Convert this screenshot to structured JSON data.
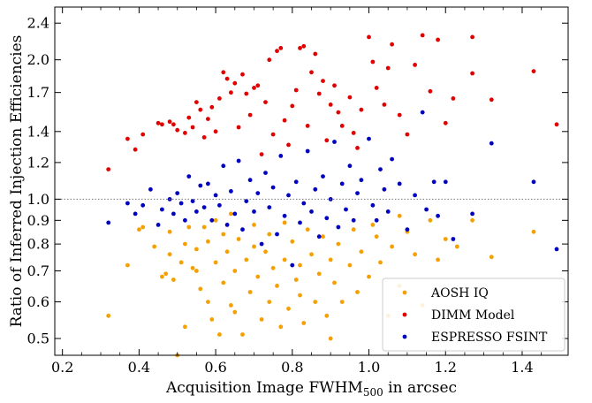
{
  "chart_data": {
    "type": "scatter",
    "xlabel_main": "Acquisition Image FWHM",
    "xlabel_sub": "500",
    "xlabel_rest": " in arcsec",
    "ylabel": "Ratio of Inferred Injection Efficiencies",
    "xlim": [
      0.18,
      1.52
    ],
    "ylim": [
      0.46,
      2.6
    ],
    "yscale": "log",
    "x_ticks": [
      0.2,
      0.4,
      0.6,
      0.8,
      1.0,
      1.2,
      1.4
    ],
    "x_tick_labels": [
      "0.2",
      "0.4",
      "0.6",
      "0.8",
      "1.0",
      "1.2",
      "1.4"
    ],
    "y_ticks": [
      0.5,
      0.6,
      0.7,
      0.8,
      0.9,
      1.0,
      1.2,
      1.4,
      1.7,
      2.0,
      2.4
    ],
    "y_tick_labels": [
      "0.5",
      "0.6",
      "0.7",
      "0.8",
      "0.9",
      "1.0",
      "1.2",
      "1.4",
      "1.7",
      "2.0",
      "2.4"
    ],
    "reference_line": {
      "y": 1.0,
      "style": "dotted",
      "color": "#777777"
    },
    "legend_position": "bottom-right",
    "series": [
      {
        "name": "AOSH IQ",
        "color": "#f5a000",
        "points": [
          [
            0.32,
            0.56
          ],
          [
            0.37,
            0.72
          ],
          [
            0.4,
            0.86
          ],
          [
            0.41,
            0.87
          ],
          [
            0.44,
            0.79
          ],
          [
            0.46,
            0.68
          ],
          [
            0.47,
            0.69
          ],
          [
            0.48,
            0.76
          ],
          [
            0.48,
            0.85
          ],
          [
            0.49,
            0.67
          ],
          [
            0.5,
            0.46
          ],
          [
            0.51,
            0.73
          ],
          [
            0.52,
            0.8
          ],
          [
            0.52,
            0.53
          ],
          [
            0.53,
            0.87
          ],
          [
            0.54,
            0.71
          ],
          [
            0.55,
            0.7
          ],
          [
            0.55,
            0.78
          ],
          [
            0.56,
            0.64
          ],
          [
            0.57,
            0.87
          ],
          [
            0.58,
            0.6
          ],
          [
            0.58,
            0.81
          ],
          [
            0.59,
            0.55
          ],
          [
            0.6,
            0.9
          ],
          [
            0.6,
            0.73
          ],
          [
            0.61,
            0.51
          ],
          [
            0.62,
            0.66
          ],
          [
            0.62,
            0.84
          ],
          [
            0.63,
            0.77
          ],
          [
            0.64,
            0.59
          ],
          [
            0.64,
            0.93
          ],
          [
            0.65,
            0.7
          ],
          [
            0.65,
            0.57
          ],
          [
            0.66,
            0.82
          ],
          [
            0.67,
            0.51
          ],
          [
            0.68,
            0.74
          ],
          [
            0.69,
            0.63
          ],
          [
            0.7,
            0.88
          ],
          [
            0.7,
            0.79
          ],
          [
            0.71,
            0.68
          ],
          [
            0.72,
            0.55
          ],
          [
            0.73,
            0.77
          ],
          [
            0.74,
            0.6
          ],
          [
            0.74,
            0.84
          ],
          [
            0.75,
            0.71
          ],
          [
            0.76,
            0.65
          ],
          [
            0.77,
            0.53
          ],
          [
            0.78,
            0.74
          ],
          [
            0.78,
            0.89
          ],
          [
            0.79,
            0.58
          ],
          [
            0.8,
            0.81
          ],
          [
            0.81,
            0.67
          ],
          [
            0.82,
            0.72
          ],
          [
            0.82,
            0.62
          ],
          [
            0.83,
            0.54
          ],
          [
            0.84,
            0.86
          ],
          [
            0.85,
            0.76
          ],
          [
            0.86,
            0.6
          ],
          [
            0.87,
            0.69
          ],
          [
            0.88,
            0.83
          ],
          [
            0.89,
            0.56
          ],
          [
            0.9,
            0.74
          ],
          [
            0.9,
            0.5
          ],
          [
            0.91,
            0.66
          ],
          [
            0.92,
            0.8
          ],
          [
            0.93,
            0.6
          ],
          [
            0.95,
            0.72
          ],
          [
            0.96,
            0.86
          ],
          [
            0.97,
            0.63
          ],
          [
            0.98,
            0.77
          ],
          [
            1.0,
            0.68
          ],
          [
            1.01,
            0.88
          ],
          [
            1.02,
            0.83
          ],
          [
            1.03,
            0.73
          ],
          [
            1.05,
            0.56
          ],
          [
            1.06,
            0.79
          ],
          [
            1.08,
            0.92
          ],
          [
            1.08,
            0.65
          ],
          [
            1.1,
            0.85
          ],
          [
            1.12,
            0.76
          ],
          [
            1.14,
            0.59
          ],
          [
            1.16,
            0.9
          ],
          [
            1.18,
            0.74
          ],
          [
            1.2,
            0.82
          ],
          [
            1.23,
            0.79
          ],
          [
            1.27,
            0.9
          ],
          [
            1.32,
            0.75
          ],
          [
            1.43,
            0.85
          ]
        ]
      },
      {
        "name": "DIMM Model",
        "color": "#e00000",
        "points": [
          [
            0.32,
            1.16
          ],
          [
            0.37,
            1.35
          ],
          [
            0.39,
            1.28
          ],
          [
            0.41,
            1.38
          ],
          [
            0.45,
            1.46
          ],
          [
            0.46,
            1.45
          ],
          [
            0.48,
            1.47
          ],
          [
            0.49,
            1.45
          ],
          [
            0.5,
            1.41
          ],
          [
            0.52,
            1.39
          ],
          [
            0.53,
            1.5
          ],
          [
            0.54,
            1.43
          ],
          [
            0.55,
            1.62
          ],
          [
            0.56,
            1.56
          ],
          [
            0.57,
            1.36
          ],
          [
            0.58,
            1.49
          ],
          [
            0.59,
            1.58
          ],
          [
            0.6,
            1.4
          ],
          [
            0.61,
            1.65
          ],
          [
            0.62,
            1.88
          ],
          [
            0.63,
            1.82
          ],
          [
            0.64,
            1.7
          ],
          [
            0.65,
            1.78
          ],
          [
            0.66,
            1.43
          ],
          [
            0.67,
            1.86
          ],
          [
            0.68,
            1.69
          ],
          [
            0.69,
            1.52
          ],
          [
            0.7,
            1.74
          ],
          [
            0.71,
            1.76
          ],
          [
            0.72,
            1.25
          ],
          [
            0.73,
            1.62
          ],
          [
            0.74,
            2.0
          ],
          [
            0.75,
            1.38
          ],
          [
            0.76,
            2.09
          ],
          [
            0.77,
            2.12
          ],
          [
            0.78,
            1.48
          ],
          [
            0.79,
            1.31
          ],
          [
            0.8,
            1.59
          ],
          [
            0.81,
            1.72
          ],
          [
            0.82,
            2.12
          ],
          [
            0.83,
            2.14
          ],
          [
            0.84,
            1.44
          ],
          [
            0.85,
            1.88
          ],
          [
            0.86,
            2.06
          ],
          [
            0.87,
            1.69
          ],
          [
            0.88,
            1.8
          ],
          [
            0.89,
            1.34
          ],
          [
            0.9,
            1.6
          ],
          [
            0.91,
            1.76
          ],
          [
            0.92,
            1.54
          ],
          [
            0.93,
            1.44
          ],
          [
            0.95,
            1.66
          ],
          [
            0.96,
            1.39
          ],
          [
            0.97,
            1.29
          ],
          [
            0.98,
            1.56
          ],
          [
            1.0,
            2.24
          ],
          [
            1.01,
            1.98
          ],
          [
            1.02,
            1.74
          ],
          [
            1.04,
            1.6
          ],
          [
            1.05,
            1.92
          ],
          [
            1.06,
            2.16
          ],
          [
            1.08,
            1.52
          ],
          [
            1.1,
            1.38
          ],
          [
            1.12,
            1.95
          ],
          [
            1.14,
            2.26
          ],
          [
            1.16,
            1.71
          ],
          [
            1.18,
            2.21
          ],
          [
            1.2,
            1.46
          ],
          [
            1.22,
            1.65
          ],
          [
            1.27,
            2.24
          ],
          [
            1.27,
            1.87
          ],
          [
            1.32,
            1.64
          ],
          [
            1.43,
            1.89
          ],
          [
            1.49,
            1.45
          ]
        ]
      },
      {
        "name": "ESPRESSO FSINT",
        "color": "#0000c0",
        "points": [
          [
            0.32,
            0.89
          ],
          [
            0.37,
            0.98
          ],
          [
            0.39,
            0.93
          ],
          [
            0.41,
            0.97
          ],
          [
            0.43,
            1.05
          ],
          [
            0.45,
            0.88
          ],
          [
            0.46,
            0.95
          ],
          [
            0.48,
            1.0
          ],
          [
            0.49,
            0.93
          ],
          [
            0.5,
            1.03
          ],
          [
            0.51,
            0.98
          ],
          [
            0.52,
            0.9
          ],
          [
            0.53,
            1.12
          ],
          [
            0.54,
            0.99
          ],
          [
            0.55,
            0.94
          ],
          [
            0.56,
            1.07
          ],
          [
            0.57,
            0.96
          ],
          [
            0.58,
            1.08
          ],
          [
            0.59,
            0.9
          ],
          [
            0.6,
            1.02
          ],
          [
            0.61,
            0.97
          ],
          [
            0.62,
            1.18
          ],
          [
            0.63,
            0.88
          ],
          [
            0.64,
            1.04
          ],
          [
            0.65,
            0.93
          ],
          [
            0.66,
            1.21
          ],
          [
            0.67,
            0.86
          ],
          [
            0.68,
            0.99
          ],
          [
            0.69,
            1.1
          ],
          [
            0.7,
            0.94
          ],
          [
            0.71,
            1.03
          ],
          [
            0.72,
            0.8
          ],
          [
            0.73,
            1.14
          ],
          [
            0.74,
            0.96
          ],
          [
            0.75,
            1.06
          ],
          [
            0.76,
            0.84
          ],
          [
            0.77,
            1.24
          ],
          [
            0.78,
            0.92
          ],
          [
            0.79,
            1.02
          ],
          [
            0.8,
            0.72
          ],
          [
            0.81,
            1.09
          ],
          [
            0.82,
            0.89
          ],
          [
            0.83,
            0.98
          ],
          [
            0.84,
            1.27
          ],
          [
            0.85,
            0.94
          ],
          [
            0.86,
            1.05
          ],
          [
            0.87,
            0.83
          ],
          [
            0.88,
            1.12
          ],
          [
            0.89,
            0.91
          ],
          [
            0.9,
            1.0
          ],
          [
            0.91,
            1.33
          ],
          [
            0.92,
            0.87
          ],
          [
            0.93,
            1.08
          ],
          [
            0.94,
            0.95
          ],
          [
            0.95,
            1.18
          ],
          [
            0.96,
            0.9
          ],
          [
            0.97,
            1.03
          ],
          [
            0.98,
            1.1
          ],
          [
            1.0,
            1.35
          ],
          [
            1.01,
            0.97
          ],
          [
            1.02,
            0.9
          ],
          [
            1.03,
            1.16
          ],
          [
            1.04,
            1.05
          ],
          [
            1.05,
            0.94
          ],
          [
            1.06,
            1.22
          ],
          [
            1.08,
            1.08
          ],
          [
            1.1,
            0.86
          ],
          [
            1.12,
            1.02
          ],
          [
            1.14,
            1.54
          ],
          [
            1.15,
            0.95
          ],
          [
            1.17,
            1.09
          ],
          [
            1.18,
            0.92
          ],
          [
            1.2,
            1.09
          ],
          [
            1.22,
            0.82
          ],
          [
            1.27,
            0.93
          ],
          [
            1.32,
            1.32
          ],
          [
            1.43,
            1.09
          ],
          [
            1.49,
            0.78
          ]
        ]
      }
    ]
  }
}
